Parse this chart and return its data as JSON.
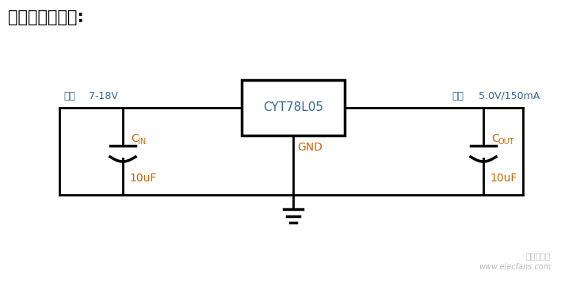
{
  "title": "典型应用线路图:",
  "title_color": "#000000",
  "title_fontsize": 15,
  "bg_color": "#ffffff",
  "line_color": "#000000",
  "label_color_orange": "#cc6600",
  "label_color_blue": "#336699",
  "ic_label": "CYT78L05",
  "ic_label_color": "#336699",
  "gnd_label": "GND",
  "gnd_label_color": "#cc6600",
  "input_label": "输入",
  "input_voltage": " 7-18V",
  "output_label": "输出",
  "output_voltage": " 5.0V/150mA",
  "cin_label": "C",
  "cin_sub": "IN",
  "cin_value": "10uF",
  "cout_label": "C",
  "cout_sub": "OUT",
  "cout_value": "10uF",
  "watermark_line1": "电子发烧友",
  "watermark_line2": "www.elecfans.com",
  "watermark_color": "#aaaaaa",
  "lw": 2.0,
  "lw_thick": 2.5
}
